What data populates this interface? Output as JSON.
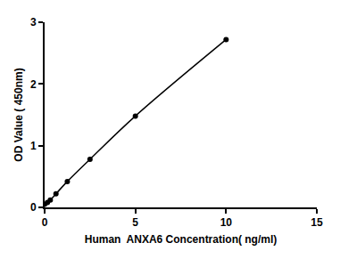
{
  "chart_data": {
    "type": "line",
    "x_label": "Human  ANXA6 Concentration( ng/ml)",
    "y_label": "OD Value ( 450nm)",
    "x": [
      0,
      0.156,
      0.3125,
      0.625,
      1.25,
      2.5,
      5,
      10
    ],
    "values": [
      0.05,
      0.08,
      0.12,
      0.22,
      0.42,
      0.78,
      1.48,
      2.72
    ],
    "color": "#000000",
    "marker": "circle",
    "line_style": "solid",
    "xlim": [
      0,
      15
    ],
    "xticks": [
      0,
      5,
      10,
      15
    ],
    "ylim": [
      0,
      3
    ],
    "yticks": [
      0,
      1,
      2,
      3
    ],
    "grid": false
  }
}
